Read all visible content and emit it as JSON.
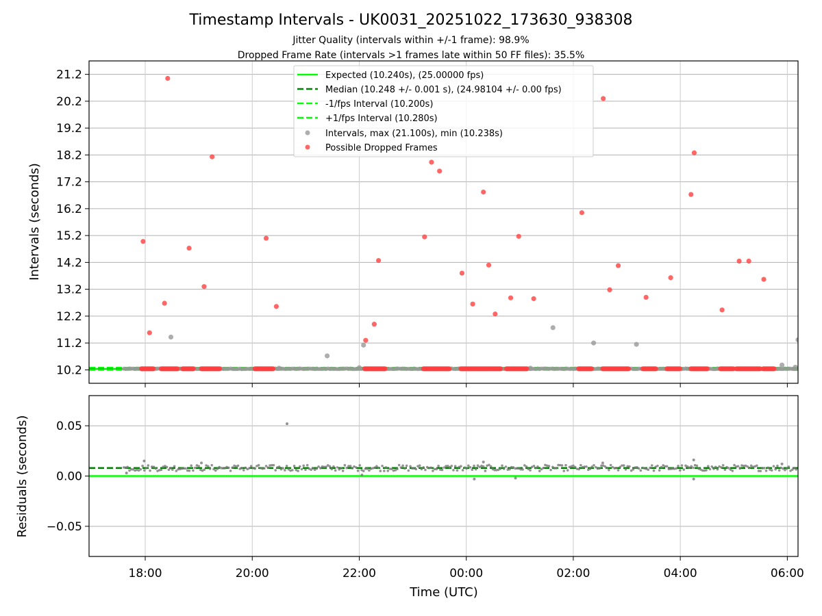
{
  "figure": {
    "title": "Timestamp Intervals - UK0031_20251022_173630_938308",
    "subtitle_1": "Jitter Quality (intervals within +/-1 frame): 98.9%",
    "subtitle_2": "Dropped Frame Rate (intervals >1 frames late within 50 FF files): 35.5%"
  },
  "chart_data": [
    {
      "type": "scatter",
      "panel": "top",
      "title": "",
      "xlabel": "",
      "ylabel": "Intervals (seconds)",
      "x_unit": "hours after 00:00 UTC",
      "xlim": [
        -7.05,
        6.2
      ],
      "ylim": [
        9.7,
        21.7
      ],
      "yticks": [
        10.2,
        11.2,
        12.2,
        13.2,
        14.2,
        15.2,
        16.2,
        17.2,
        18.2,
        19.2,
        20.2,
        21.2
      ],
      "ytick_labels": [
        "10.2",
        "11.2",
        "12.2",
        "13.2",
        "14.2",
        "15.2",
        "16.2",
        "17.2",
        "18.2",
        "19.2",
        "20.2",
        "21.2"
      ],
      "xticks": [
        -6,
        -4,
        -2,
        0,
        2,
        4,
        6
      ],
      "xtick_labels": [
        "18:00",
        "20:00",
        "22:00",
        "00:00",
        "02:00",
        "04:00",
        "06:00"
      ],
      "grid": true,
      "legend_position": "top-center",
      "lines": [
        {
          "name": "Expected (10.240s), (25.00000 fps)",
          "y": 10.24,
          "style": "solid",
          "color": "#00ff00"
        },
        {
          "name": "Median (10.248 +/- 0.001 s), (24.98104 +/- 0.00 fps)",
          "y": 10.248,
          "style": "dashed",
          "color": "#008000"
        },
        {
          "name": "-1/fps Interval (10.200s)",
          "y": 10.2,
          "style": "dashed",
          "color": "#00ff00"
        },
        {
          "name": "+1/fps Interval (10.280s)",
          "y": 10.28,
          "style": "dashed",
          "color": "#00ff00"
        }
      ],
      "series": [
        {
          "name": "Intervals, max (21.100s), min (10.238s)",
          "color": "#999999",
          "dense_range": [
            -6.4,
            6.2
          ],
          "dense_value": 10.24,
          "points": [
            {
              "x": -5.52,
              "y": 11.42
            },
            {
              "x": -2.6,
              "y": 10.72
            },
            {
              "x": -1.92,
              "y": 11.12
            },
            {
              "x": -2.0,
              "y": 10.28
            },
            {
              "x": 1.62,
              "y": 11.77
            },
            {
              "x": 2.38,
              "y": 11.2
            },
            {
              "x": 3.18,
              "y": 11.15
            },
            {
              "x": 5.9,
              "y": 10.38
            },
            {
              "x": 6.15,
              "y": 10.3
            },
            {
              "x": 6.2,
              "y": 11.32
            },
            {
              "x": 1.2,
              "y": 10.26
            },
            {
              "x": -3.5,
              "y": 10.26
            }
          ]
        },
        {
          "name": "Possible Dropped Frames",
          "color": "#ff4040",
          "points": [
            {
              "x": -6.04,
              "y": 14.98
            },
            {
              "x": -5.92,
              "y": 11.58
            },
            {
              "x": -5.64,
              "y": 12.68
            },
            {
              "x": -5.58,
              "y": 21.05
            },
            {
              "x": -5.18,
              "y": 14.73
            },
            {
              "x": -4.9,
              "y": 13.3
            },
            {
              "x": -4.75,
              "y": 18.13
            },
            {
              "x": -3.74,
              "y": 15.1
            },
            {
              "x": -3.55,
              "y": 12.56
            },
            {
              "x": -1.88,
              "y": 11.3
            },
            {
              "x": -1.72,
              "y": 11.9
            },
            {
              "x": -1.64,
              "y": 14.27
            },
            {
              "x": -0.78,
              "y": 15.15
            },
            {
              "x": -0.65,
              "y": 17.93
            },
            {
              "x": -0.5,
              "y": 17.6
            },
            {
              "x": -0.08,
              "y": 13.8
            },
            {
              "x": 0.12,
              "y": 12.65
            },
            {
              "x": 0.32,
              "y": 16.82
            },
            {
              "x": 0.42,
              "y": 14.1
            },
            {
              "x": 0.54,
              "y": 12.28
            },
            {
              "x": 0.83,
              "y": 12.88
            },
            {
              "x": 0.98,
              "y": 15.17
            },
            {
              "x": 1.26,
              "y": 12.85
            },
            {
              "x": 2.16,
              "y": 16.05
            },
            {
              "x": 2.56,
              "y": 20.3
            },
            {
              "x": 2.68,
              "y": 13.18
            },
            {
              "x": 2.84,
              "y": 14.08
            },
            {
              "x": 3.36,
              "y": 12.9
            },
            {
              "x": 3.82,
              "y": 13.63
            },
            {
              "x": 4.2,
              "y": 16.73
            },
            {
              "x": 4.26,
              "y": 18.28
            },
            {
              "x": 4.78,
              "y": 12.43
            },
            {
              "x": 5.1,
              "y": 14.25
            },
            {
              "x": 5.28,
              "y": 14.25
            },
            {
              "x": 5.56,
              "y": 13.57
            }
          ],
          "clusters_at_10_24": [
            [
              -6.07,
              -5.85
            ],
            [
              -5.7,
              -5.4
            ],
            [
              -5.3,
              -5.1
            ],
            [
              -4.95,
              -4.6
            ],
            [
              -3.95,
              -3.6
            ],
            [
              -1.9,
              -1.5
            ],
            [
              -0.8,
              -0.3
            ],
            [
              -0.1,
              0.65
            ],
            [
              0.75,
              1.15
            ],
            [
              2.1,
              2.35
            ],
            [
              2.55,
              3.05
            ],
            [
              3.3,
              3.55
            ],
            [
              3.75,
              4.0
            ],
            [
              4.2,
              4.5
            ],
            [
              4.75,
              5.0
            ],
            [
              5.05,
              5.5
            ],
            [
              5.55,
              5.75
            ]
          ]
        }
      ]
    },
    {
      "type": "scatter",
      "panel": "bottom",
      "title": "",
      "xlabel": "Time (UTC)",
      "ylabel": "Residuals (seconds)",
      "x_unit": "hours after 00:00 UTC",
      "xlim": [
        -7.05,
        6.2
      ],
      "ylim": [
        -0.08,
        0.08
      ],
      "yticks": [
        -0.05,
        0.0,
        0.05
      ],
      "ytick_labels": [
        "−0.05",
        "0.00",
        "0.05"
      ],
      "xticks": [
        -6,
        -4,
        -2,
        0,
        2,
        4,
        6
      ],
      "xtick_labels": [
        "18:00",
        "20:00",
        "22:00",
        "00:00",
        "02:00",
        "04:00",
        "06:00"
      ],
      "grid": true,
      "lines": [
        {
          "name": "Expected",
          "y": 0.0,
          "style": "solid",
          "color": "#00ff00"
        },
        {
          "name": "Median",
          "y": 0.008,
          "style": "dashed",
          "color": "#008000"
        }
      ],
      "series": [
        {
          "name": "Residuals",
          "color": "#777777",
          "dense_range": [
            -6.4,
            6.2
          ],
          "dense_value": 0.008,
          "points": [
            {
              "x": -3.35,
              "y": 0.052
            },
            {
              "x": -6.02,
              "y": 0.015
            },
            {
              "x": 0.15,
              "y": -0.003
            },
            {
              "x": 0.32,
              "y": 0.014
            },
            {
              "x": 0.92,
              "y": -0.002
            },
            {
              "x": 4.25,
              "y": 0.016
            },
            {
              "x": 4.25,
              "y": -0.003
            },
            {
              "x": -4.95,
              "y": 0.013
            },
            {
              "x": -1.95,
              "y": 0.001
            },
            {
              "x": 2.55,
              "y": 0.013
            },
            {
              "x": -6.35,
              "y": 0.003
            },
            {
              "x": 5.9,
              "y": 0.012
            }
          ]
        }
      ]
    }
  ]
}
